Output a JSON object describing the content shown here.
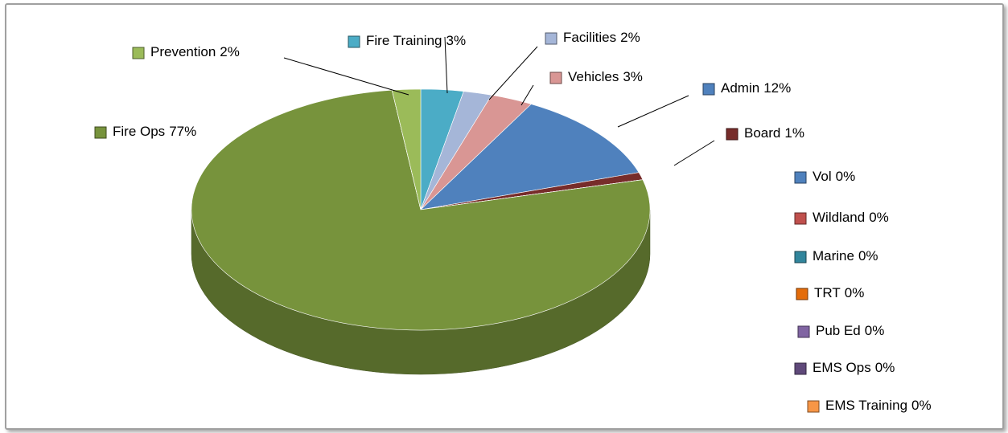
{
  "chart_data": {
    "type": "pie",
    "categories": [
      "Fire Training",
      "TRT",
      "Facilities",
      "Vehicles",
      "Admin",
      "Board",
      "Vol",
      "Wildland",
      "Marine",
      "Fire Ops",
      "EMS Ops",
      "Pub Ed",
      "EMS Training",
      "Prevention"
    ],
    "values": [
      3,
      0,
      2,
      3,
      12,
      1,
      0,
      0,
      0,
      77,
      0,
      0,
      0,
      2
    ],
    "value_labels": [
      "3%",
      "0%",
      "2%",
      "3%",
      "12%",
      "1%",
      "0%",
      "0%",
      "0%",
      "77%",
      "0%",
      "0%",
      "0%",
      "2%"
    ],
    "colors": [
      "#4bacc6",
      "#e46c0a",
      "#a5b6d8",
      "#d99694",
      "#4f81bd",
      "#772c2a",
      "#4f81bd",
      "#c0504d",
      "#31859c",
      "#77933c",
      "#5f497a",
      "#8064a2",
      "#f79646",
      "#9bbb59"
    ]
  }
}
